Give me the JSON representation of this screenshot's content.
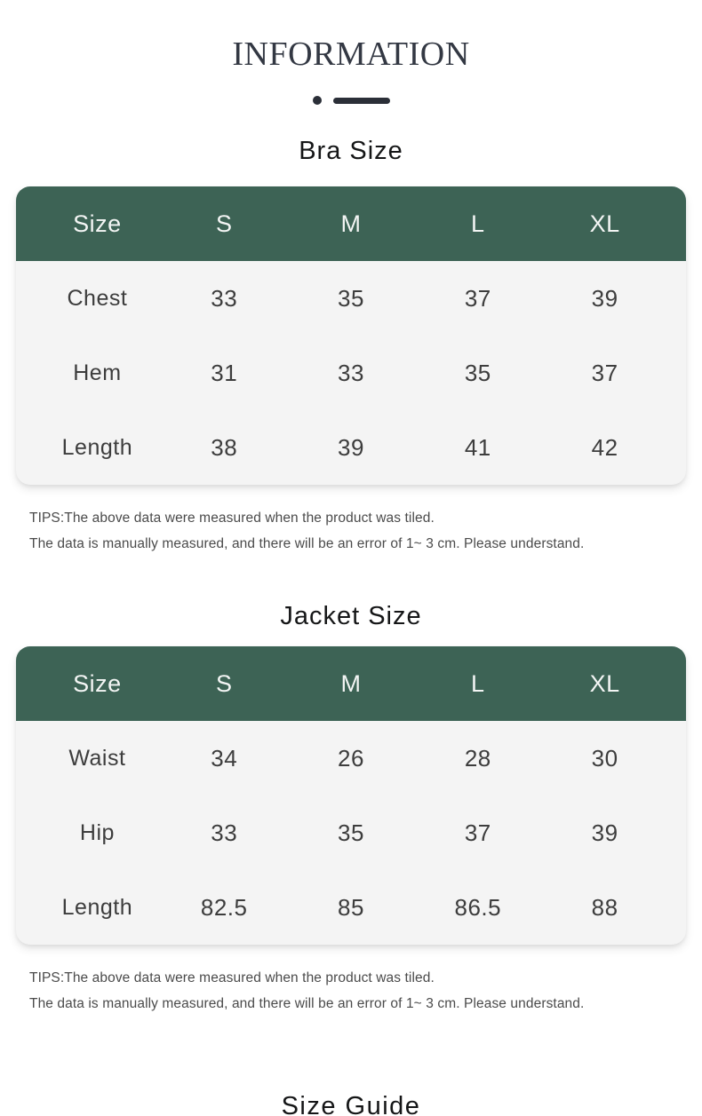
{
  "header": {
    "title": "INFORMATION"
  },
  "colors": {
    "table_header_bg": "#3d6355",
    "table_body_bg": "#f4f4f4",
    "title_color": "#333843",
    "divider_color": "#2b2f38",
    "cell_text": "#3d3d3d",
    "tips_text": "#4b4b4b"
  },
  "sections": [
    {
      "heading": "Bra Size",
      "table": {
        "columns": [
          "Size",
          "S",
          "M",
          "L",
          "XL"
        ],
        "rows": [
          {
            "label": "Chest",
            "values": [
              "33",
              "35",
              "37",
              "39"
            ]
          },
          {
            "label": "Hem",
            "values": [
              "31",
              "33",
              "35",
              "37"
            ]
          },
          {
            "label": "Length",
            "values": [
              "38",
              "39",
              "41",
              "42"
            ]
          }
        ]
      },
      "tips": [
        "TIPS:The above data were measured when the product was tiled.",
        "The data is manually measured, and there will be an error of 1~ 3 cm. Please understand."
      ]
    },
    {
      "heading": "Jacket Size",
      "table": {
        "columns": [
          "Size",
          "S",
          "M",
          "L",
          "XL"
        ],
        "rows": [
          {
            "label": "Waist",
            "values": [
              "34",
              "26",
              "28",
              "30"
            ]
          },
          {
            "label": "Hip",
            "values": [
              "33",
              "35",
              "37",
              "39"
            ]
          },
          {
            "label": "Length",
            "values": [
              "82.5",
              "85",
              "86.5",
              "88"
            ]
          }
        ]
      },
      "tips": [
        "TIPS:The above data were measured when the product was tiled.",
        "The data is manually measured, and there will be an error of 1~ 3 cm. Please understand."
      ]
    }
  ],
  "footer_heading": "Size Guide"
}
